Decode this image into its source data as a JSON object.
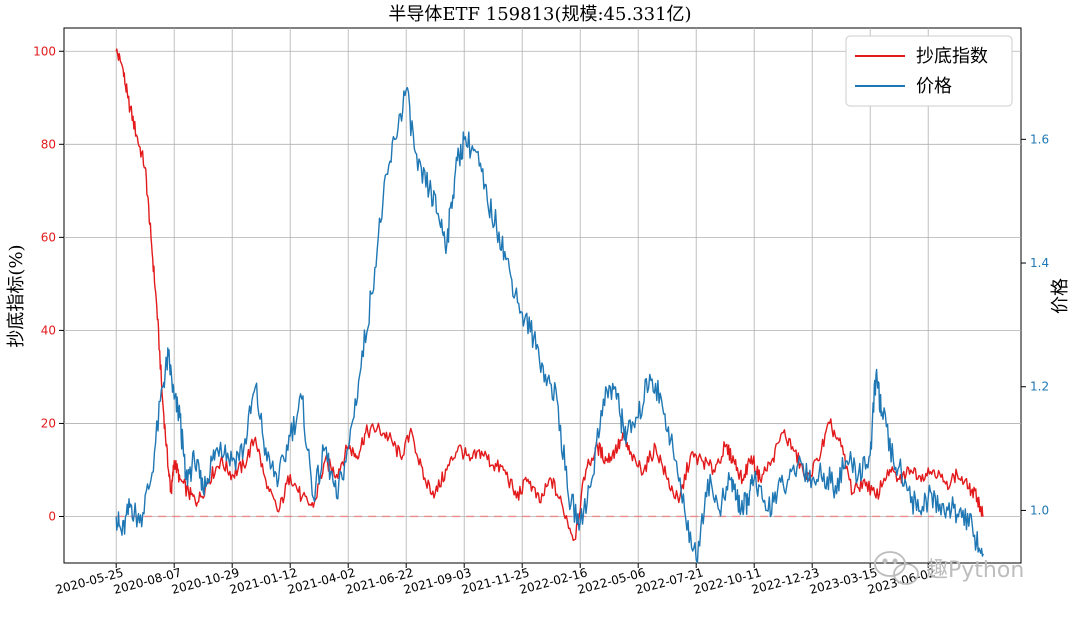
{
  "chart_data": {
    "type": "line",
    "title": "半导体ETF  159813(规模:45.331亿)",
    "ylabel_left": "抄底指标(%)",
    "ylabel_right": "价格",
    "ylim_left": [
      -10,
      105
    ],
    "ylim_right": [
      0.915,
      1.78
    ],
    "yticks_left": [
      0,
      20,
      40,
      60,
      80,
      100
    ],
    "yticks_right": [
      1.0,
      1.2,
      1.4,
      1.6
    ],
    "ytick_labels_right": [
      "1.0",
      "1.2",
      "1.4",
      "1.6"
    ],
    "xtick_labels": [
      "2020-05-25",
      "2020-08-07",
      "2020-10-29",
      "2021-01-12",
      "2021-04-02",
      "2021-06-22",
      "2021-09-03",
      "2021-11-25",
      "2022-02-16",
      "2022-05-06",
      "2022-07-21",
      "2022-10-11",
      "2022-12-23",
      "2023-03-15",
      "2023-06-02"
    ],
    "x_range": [
      -0.9,
      15.6
    ],
    "grid": true,
    "legend_position": "top-right",
    "reference_line": {
      "value": 0,
      "color": "#e88a8a",
      "style": "dashed"
    },
    "series": [
      {
        "name": "抄底指数",
        "axis": "left",
        "color": "#e31a1c",
        "x": [
          0,
          0.1,
          0.2,
          0.35,
          0.5,
          0.6,
          0.7,
          0.8,
          0.9,
          0.95,
          1.0,
          1.1,
          1.25,
          1.4,
          1.6,
          1.8,
          2.0,
          2.2,
          2.4,
          2.6,
          2.8,
          3.0,
          3.2,
          3.4,
          3.6,
          3.8,
          4.0,
          4.15,
          4.3,
          4.5,
          4.7,
          4.9,
          5.1,
          5.3,
          5.5,
          5.7,
          5.9,
          6.1,
          6.3,
          6.5,
          6.7,
          6.9,
          7.1,
          7.3,
          7.5,
          7.7,
          7.9,
          8.1,
          8.3,
          8.45,
          8.6,
          8.75,
          8.9,
          9.1,
          9.3,
          9.5,
          9.7,
          9.9,
          10.1,
          10.3,
          10.5,
          10.65,
          10.8,
          10.95,
          11.1,
          11.3,
          11.5,
          11.7,
          11.9,
          12.1,
          12.3,
          12.5,
          12.7,
          12.9,
          13.1,
          13.3,
          13.5,
          13.7,
          13.9,
          14.1,
          14.3,
          14.5,
          14.7,
          14.85,
          14.95
        ],
        "values": [
          100,
          97,
          90,
          82,
          75,
          60,
          45,
          25,
          10,
          5,
          12,
          8,
          5,
          3,
          8,
          12,
          9,
          11,
          17,
          6,
          1,
          9,
          4,
          2,
          12,
          9,
          15,
          13,
          18,
          19,
          17,
          13,
          18,
          8,
          5,
          10,
          15,
          12,
          14,
          11,
          10,
          4,
          8,
          3,
          8,
          2,
          -5,
          10,
          15,
          12,
          14,
          17,
          12,
          10,
          15,
          8,
          3,
          13,
          12,
          10,
          15,
          12,
          8,
          13,
          8,
          12,
          18,
          14,
          8,
          12,
          20,
          15,
          5,
          8,
          4,
          10,
          8,
          10,
          9,
          10,
          7,
          9,
          6,
          4,
          0
        ]
      },
      {
        "name": "价格",
        "axis": "right",
        "color": "#1f77b4",
        "x": [
          0,
          0.1,
          0.25,
          0.4,
          0.6,
          0.8,
          0.9,
          1.0,
          1.1,
          1.2,
          1.35,
          1.5,
          1.65,
          1.8,
          2.0,
          2.2,
          2.4,
          2.6,
          2.8,
          3.0,
          3.2,
          3.4,
          3.6,
          3.8,
          4.0,
          4.2,
          4.4,
          4.6,
          4.8,
          5.0,
          5.2,
          5.4,
          5.55,
          5.7,
          5.85,
          6.0,
          6.2,
          6.4,
          6.6,
          6.8,
          7.0,
          7.2,
          7.4,
          7.6,
          7.8,
          8.0,
          8.2,
          8.4,
          8.6,
          8.7,
          8.8,
          9.0,
          9.2,
          9.4,
          9.6,
          9.8,
          10.0,
          10.2,
          10.4,
          10.6,
          10.7,
          10.8,
          10.9,
          11.0,
          11.2,
          11.4,
          11.6,
          11.8,
          12.0,
          12.2,
          12.4,
          12.6,
          12.8,
          13.0,
          13.1,
          13.2,
          13.4,
          13.6,
          13.8,
          14.0,
          14.2,
          14.4,
          14.6,
          14.8,
          14.95
        ],
        "values": [
          0.99,
          0.96,
          1.01,
          0.98,
          1.05,
          1.2,
          1.25,
          1.18,
          1.15,
          1.05,
          1.08,
          1.03,
          1.08,
          1.11,
          1.08,
          1.1,
          1.2,
          1.08,
          1.05,
          1.12,
          1.18,
          1.02,
          1.1,
          1.02,
          1.1,
          1.22,
          1.35,
          1.5,
          1.6,
          1.68,
          1.55,
          1.52,
          1.48,
          1.43,
          1.55,
          1.6,
          1.58,
          1.5,
          1.45,
          1.38,
          1.32,
          1.28,
          1.22,
          1.18,
          1.02,
          0.98,
          1.05,
          1.18,
          1.2,
          1.15,
          1.12,
          1.15,
          1.22,
          1.18,
          1.1,
          1.0,
          0.92,
          1.05,
          1.0,
          1.05,
          1.02,
          1.0,
          1.02,
          1.05,
          1.0,
          1.03,
          1.05,
          1.08,
          1.05,
          1.06,
          1.04,
          1.08,
          1.06,
          1.09,
          1.22,
          1.16,
          1.08,
          1.05,
          1.0,
          1.02,
          1.01,
          1.0,
          1.0,
          0.96,
          0.93
        ]
      }
    ]
  },
  "watermark": {
    "text": "趣Python",
    "icon": "wechat-icon"
  }
}
